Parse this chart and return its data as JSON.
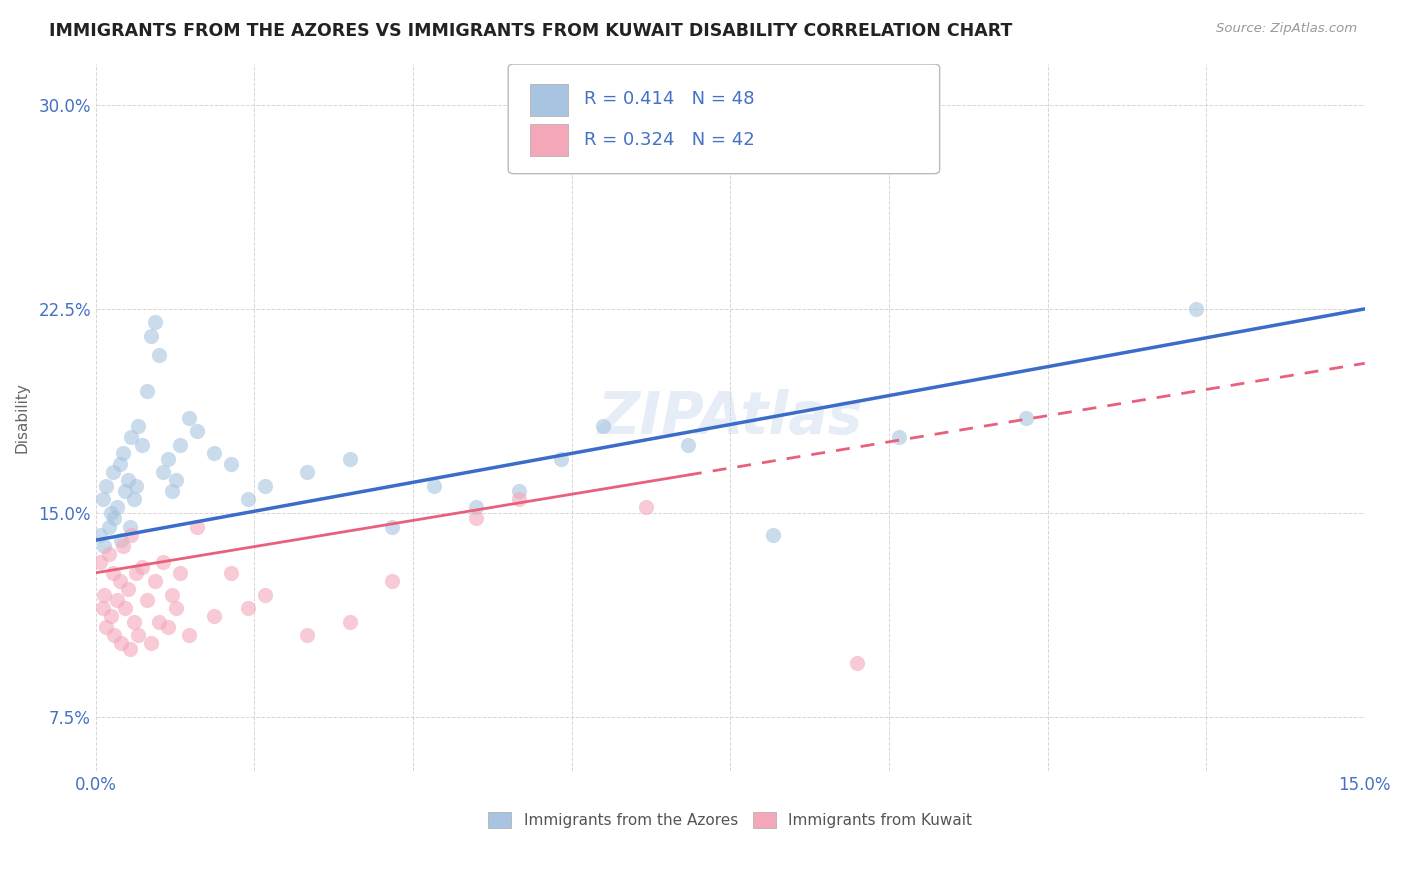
{
  "title": "IMMIGRANTS FROM THE AZORES VS IMMIGRANTS FROM KUWAIT DISABILITY CORRELATION CHART",
  "source": "Source: ZipAtlas.com",
  "ylabel": "Disability",
  "xlim": [
    0.0,
    15.0
  ],
  "ylim": [
    5.5,
    31.5
  ],
  "yticks": [
    7.5,
    15.0,
    22.5,
    30.0
  ],
  "xticks": [
    0.0,
    1.875,
    3.75,
    5.625,
    7.5,
    9.375,
    11.25,
    13.125,
    15.0
  ],
  "azores_color": "#a8c4e0",
  "kuwait_color": "#f4a7b9",
  "azores_line_color": "#3a6cc8",
  "kuwait_line_color": "#e8607a",
  "background_color": "#ffffff",
  "grid_color": "#cccccc",
  "azores_x": [
    0.05,
    0.08,
    0.1,
    0.12,
    0.15,
    0.18,
    0.2,
    0.22,
    0.25,
    0.28,
    0.3,
    0.32,
    0.35,
    0.38,
    0.4,
    0.42,
    0.45,
    0.48,
    0.5,
    0.55,
    0.6,
    0.65,
    0.7,
    0.75,
    0.8,
    0.85,
    0.9,
    0.95,
    1.0,
    1.1,
    1.2,
    1.4,
    1.6,
    1.8,
    2.0,
    2.5,
    3.0,
    3.5,
    4.0,
    4.5,
    5.0,
    5.5,
    6.0,
    7.0,
    8.0,
    9.5,
    11.0,
    13.0
  ],
  "azores_y": [
    14.2,
    15.5,
    13.8,
    16.0,
    14.5,
    15.0,
    16.5,
    14.8,
    15.2,
    16.8,
    14.0,
    17.2,
    15.8,
    16.2,
    14.5,
    17.8,
    15.5,
    16.0,
    18.2,
    17.5,
    19.5,
    21.5,
    22.0,
    20.8,
    16.5,
    17.0,
    15.8,
    16.2,
    17.5,
    18.5,
    18.0,
    17.2,
    16.8,
    15.5,
    16.0,
    16.5,
    17.0,
    14.5,
    16.0,
    15.2,
    15.8,
    17.0,
    18.2,
    17.5,
    14.2,
    17.8,
    18.5,
    22.5
  ],
  "kuwait_x": [
    0.05,
    0.08,
    0.1,
    0.12,
    0.15,
    0.18,
    0.2,
    0.22,
    0.25,
    0.28,
    0.3,
    0.32,
    0.35,
    0.38,
    0.4,
    0.42,
    0.45,
    0.48,
    0.5,
    0.55,
    0.6,
    0.65,
    0.7,
    0.75,
    0.8,
    0.85,
    0.9,
    0.95,
    1.0,
    1.1,
    1.2,
    1.4,
    1.6,
    1.8,
    2.0,
    2.5,
    3.0,
    3.5,
    4.5,
    5.0,
    6.5,
    9.0
  ],
  "kuwait_y": [
    13.2,
    11.5,
    12.0,
    10.8,
    13.5,
    11.2,
    12.8,
    10.5,
    11.8,
    12.5,
    10.2,
    13.8,
    11.5,
    12.2,
    10.0,
    14.2,
    11.0,
    12.8,
    10.5,
    13.0,
    11.8,
    10.2,
    12.5,
    11.0,
    13.2,
    10.8,
    12.0,
    11.5,
    12.8,
    10.5,
    14.5,
    11.2,
    12.8,
    11.5,
    12.0,
    10.5,
    11.0,
    12.5,
    14.8,
    15.5,
    15.2,
    9.5
  ],
  "azores_line_x0": 0.0,
  "azores_line_y0": 14.0,
  "azores_line_x1": 15.0,
  "azores_line_y1": 22.5,
  "kuwait_line_x0": 0.0,
  "kuwait_line_y0": 12.8,
  "kuwait_line_x1": 15.0,
  "kuwait_line_y1": 20.5
}
